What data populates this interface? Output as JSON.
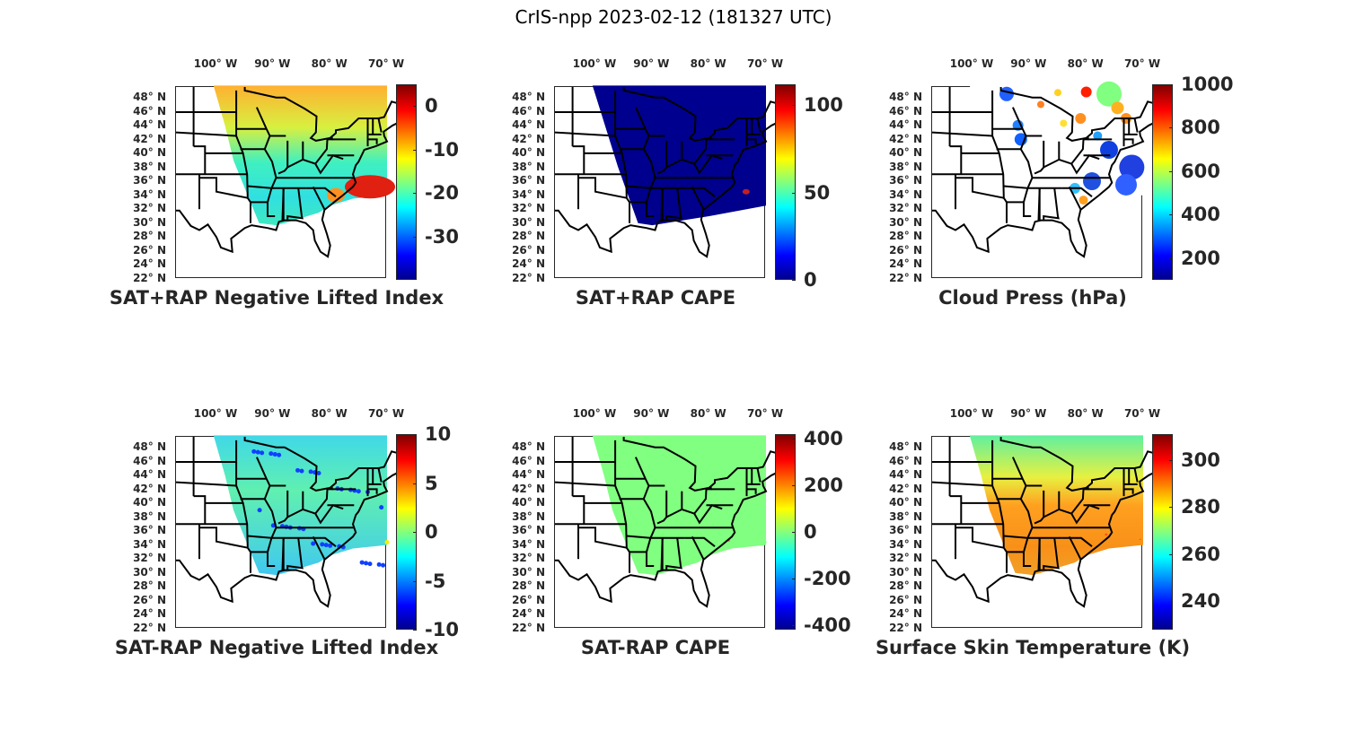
{
  "figure_title": "CrIS-npp 2023-02-12 (181327 UTC)",
  "lon_labels": [
    "100° W",
    "90° W",
    "80° W",
    "70° W"
  ],
  "lat_labels": [
    "48° N",
    "46° N",
    "44° N",
    "42° N",
    "40° N",
    "38° N",
    "36° N",
    "34° N",
    "32° N",
    "30° N",
    "28° N",
    "26° N",
    "24° N",
    "22° N"
  ],
  "chart_data": [
    {
      "type": "heatmap",
      "title": "SAT+RAP Negative Lifted Index",
      "colormap": "jet",
      "clim": [
        -40,
        5
      ],
      "colorbar_ticks": [
        0,
        -10,
        -20,
        -30
      ],
      "colorbar_tick_labels": [
        "0",
        "-10",
        "-20",
        "-30"
      ]
    },
    {
      "type": "heatmap",
      "title": "SAT+RAP CAPE",
      "colormap": "jet",
      "clim": [
        0,
        112
      ],
      "colorbar_ticks": [
        100,
        50,
        0
      ],
      "colorbar_tick_labels": [
        "100",
        "50",
        "0"
      ]
    },
    {
      "type": "heatmap",
      "title": "Cloud Press (hPa)",
      "colormap": "jet",
      "clim": [
        100,
        1000
      ],
      "colorbar_ticks": [
        1000,
        800,
        600,
        400,
        200
      ],
      "colorbar_tick_labels": [
        "1000",
        "800",
        "600",
        "400",
        "200"
      ]
    },
    {
      "type": "heatmap",
      "title": "SAT-RAP Negative Lifted Index",
      "colormap": "jet",
      "clim": [
        -10,
        10
      ],
      "colorbar_ticks": [
        10,
        5,
        0,
        -5,
        -10
      ],
      "colorbar_tick_labels": [
        "10",
        "5",
        "0",
        "-5",
        "-10"
      ]
    },
    {
      "type": "heatmap",
      "title": "SAT-RAP CAPE",
      "colormap": "jet",
      "clim": [
        -420,
        420
      ],
      "colorbar_ticks": [
        400,
        200,
        0,
        -200,
        -400
      ],
      "colorbar_tick_labels": [
        "400",
        "200",
        "0",
        "-200",
        "-400"
      ]
    },
    {
      "type": "heatmap",
      "title": "Surface Skin Temperature (K)",
      "colormap": "jet",
      "clim": [
        228,
        311
      ],
      "colorbar_ticks": [
        300,
        280,
        260,
        240
      ],
      "colorbar_tick_labels": [
        "300",
        "280",
        "260",
        "240"
      ]
    }
  ]
}
